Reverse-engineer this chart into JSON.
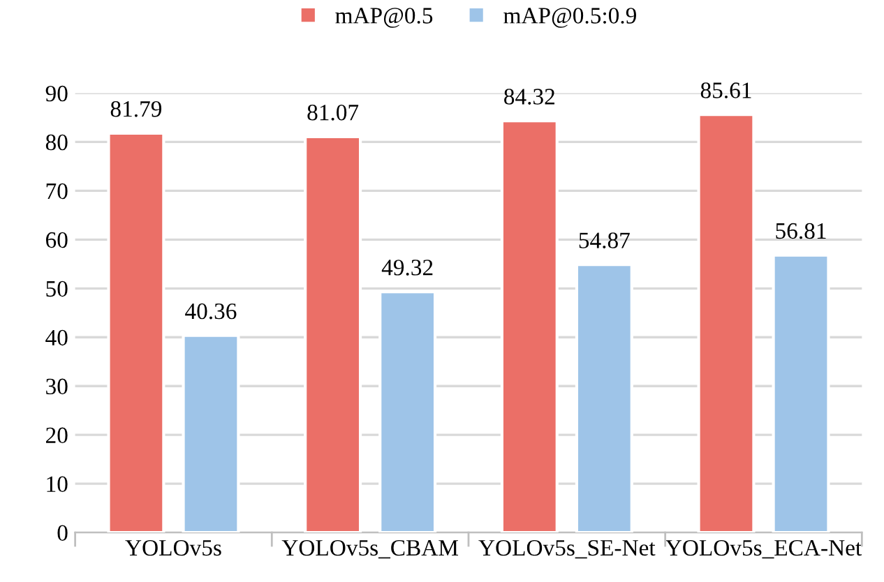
{
  "chart_data": {
    "type": "bar",
    "categories": [
      "YOLOv5s",
      "YOLOv5s_CBAM",
      "YOLOv5s_SE-Net",
      "YOLOv5s_ECA-Net"
    ],
    "series": [
      {
        "name": "mAP@0.5",
        "color": "#eb6f67",
        "values": [
          81.79,
          81.07,
          84.32,
          85.61
        ]
      },
      {
        "name": "mAP@0.5:0.9",
        "color": "#9ec4e8",
        "values": [
          40.36,
          49.32,
          54.87,
          56.81
        ]
      }
    ],
    "ylim": [
      0,
      90
    ],
    "yticks": [
      0,
      10,
      20,
      30,
      40,
      50,
      60,
      70,
      80,
      90
    ],
    "grid": "y",
    "legend": "top",
    "data_labels": true
  }
}
